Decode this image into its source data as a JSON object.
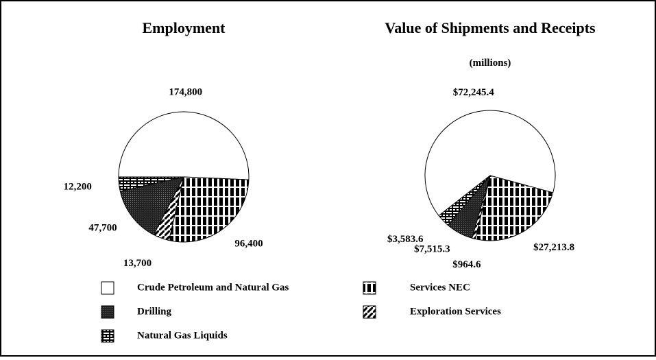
{
  "chart_data": [
    {
      "type": "pie",
      "title": "Employment",
      "categories": [
        "Crude Petroleum and Natural Gas",
        "Services NEC",
        "Exploration Services",
        "Drilling",
        "Natural Gas Liquids"
      ],
      "values": [
        174800,
        96400,
        13700,
        47700,
        12200
      ],
      "value_labels": [
        "174,800",
        "96,400",
        "13,700",
        "47,700",
        "12,200"
      ]
    },
    {
      "type": "pie",
      "title": "Value of Shipments and Receipts",
      "subtitle": "(millions)",
      "categories": [
        "Crude Petroleum and Natural Gas",
        "Services NEC",
        "Exploration Services",
        "Drilling",
        "Natural Gas Liquids"
      ],
      "values": [
        72245.4,
        27213.8,
        964.6,
        7515.3,
        3583.6
      ],
      "value_labels": [
        "$72,245.4",
        "$27,213.8",
        "$964.6",
        "$7,515.3",
        "$3,583.6"
      ]
    }
  ]
}
